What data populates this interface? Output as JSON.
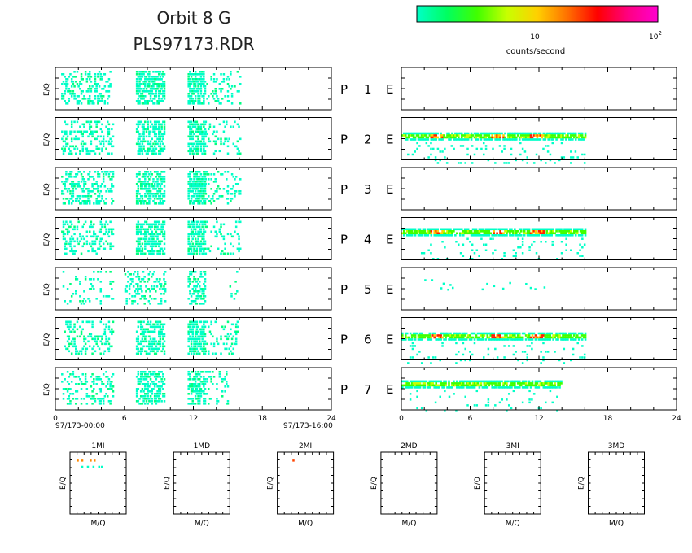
{
  "title_line1": "Orbit  8  G",
  "title_line2": "PLS97173.RDR",
  "colorbar": {
    "label": "counts/second",
    "tick_10": "10",
    "tick_100_base": "10",
    "tick_100_exp": "2",
    "colors": [
      "#00ffc8",
      "#00ff60",
      "#40ff00",
      "#c8ff00",
      "#ffd000",
      "#ff7000",
      "#ff0000",
      "#ff0080",
      "#ff00d0"
    ]
  },
  "panel_ylabel": "E/Q",
  "panel_prefix": "P",
  "panel_suffix": "E",
  "x_ticks": [
    "0",
    "6",
    "12",
    "18",
    "24"
  ],
  "x_start_label": "97/173-00:00",
  "x_end_label": "97/173-16:00",
  "chart_data": {
    "type": "heatmap",
    "x_unit": "hours",
    "xlim": [
      0,
      24
    ],
    "panels": [
      {
        "number": "1",
        "left_activity": [
          [
            0.5,
            4.8,
            0.35
          ],
          [
            7,
            9.5,
            0.6
          ],
          [
            11.5,
            13,
            0.7
          ],
          [
            13,
            16,
            0.15
          ]
        ],
        "right_bands": []
      },
      {
        "number": "2",
        "left_activity": [
          [
            0.5,
            5,
            0.3
          ],
          [
            7,
            9.5,
            0.55
          ],
          [
            11.5,
            13,
            0.65
          ],
          [
            13,
            16,
            0.15
          ]
        ],
        "right_bands": [
          {
            "y": 0.35,
            "x0": 0,
            "x1": 16,
            "peaks": [
              3,
              8.3,
              11.8
            ]
          }
        ]
      },
      {
        "number": "3",
        "left_activity": [
          [
            0.5,
            5,
            0.35
          ],
          [
            7,
            9.5,
            0.55
          ],
          [
            11.5,
            13,
            0.7
          ],
          [
            13,
            16,
            0.2
          ]
        ],
        "right_bands": []
      },
      {
        "number": "4",
        "left_activity": [
          [
            0.5,
            5,
            0.3
          ],
          [
            7,
            9.5,
            0.6
          ],
          [
            11.5,
            13,
            0.65
          ],
          [
            13,
            16,
            0.15
          ]
        ],
        "right_bands": [
          {
            "y": 0.25,
            "x0": 0,
            "x1": 16,
            "peaks": [
              3,
              8.3,
              11.8
            ]
          }
        ]
      },
      {
        "number": "5",
        "left_activity": [
          [
            0.5,
            5,
            0.12
          ],
          [
            6,
            9.5,
            0.25
          ],
          [
            11.5,
            13,
            0.5
          ],
          [
            15,
            16,
            0.08
          ]
        ],
        "right_bands": []
      },
      {
        "number": "6",
        "left_activity": [
          [
            0.5,
            5,
            0.25
          ],
          [
            7,
            9.5,
            0.55
          ],
          [
            11.5,
            13,
            0.65
          ],
          [
            13,
            16,
            0.15
          ]
        ],
        "right_bands": [
          {
            "y": 0.35,
            "x0": 0,
            "x1": 16,
            "peaks": [
              3,
              8.3,
              11.8
            ]
          }
        ]
      },
      {
        "number": "7",
        "left_activity": [
          [
            0.5,
            5,
            0.25
          ],
          [
            7,
            9.5,
            0.5
          ],
          [
            11.5,
            13,
            0.6
          ],
          [
            13,
            15,
            0.2
          ]
        ],
        "right_bands": [
          {
            "y": 0.3,
            "x0": 0,
            "x1": 14,
            "peaks": []
          }
        ]
      }
    ],
    "mass_panels": [
      {
        "label": "1MI",
        "points": [
          [
            0.12,
            0.12,
            "#ff8800"
          ],
          [
            0.2,
            0.12,
            "#ff8800"
          ],
          [
            0.35,
            0.12,
            "#ff8800"
          ],
          [
            0.42,
            0.12,
            "#ff8800"
          ],
          [
            0.2,
            0.22,
            "#00ffc8"
          ],
          [
            0.3,
            0.22,
            "#00ffc8"
          ],
          [
            0.4,
            0.22,
            "#00ffc8"
          ],
          [
            0.5,
            0.22,
            "#00ffc8"
          ],
          [
            0.55,
            0.22,
            "#00ffc8"
          ]
        ]
      },
      {
        "label": "1MD",
        "points": []
      },
      {
        "label": "2MI",
        "points": [
          [
            0.27,
            0.12,
            "#ff4400"
          ]
        ]
      },
      {
        "label": "2MD",
        "points": []
      },
      {
        "label": "3MI",
        "points": []
      },
      {
        "label": "3MD",
        "points": []
      }
    ],
    "mass_xlabel": "M/Q",
    "mass_ylabel": "E/Q"
  }
}
